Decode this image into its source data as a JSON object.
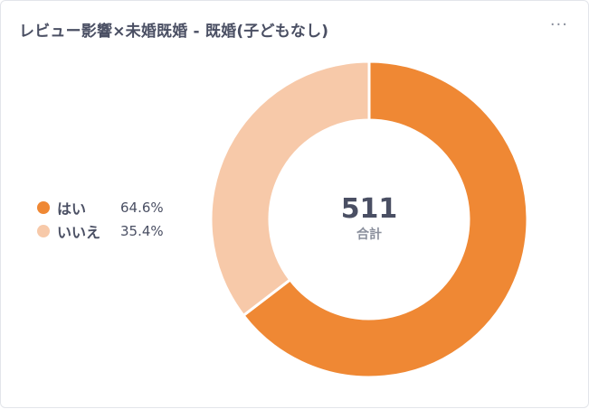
{
  "header": {
    "title": "レビュー影響×未婚既婚 - 既婚(子どもなし)",
    "menu_icon": "more-horizontal-icon"
  },
  "chart_data": {
    "type": "pie",
    "donut": true,
    "categories": [
      "はい",
      "いいえ"
    ],
    "values": [
      64.6,
      35.4
    ],
    "value_labels": [
      "64.6%",
      "35.4%"
    ],
    "colors": [
      "#ef8834",
      "#f7c9a9"
    ],
    "center_value": "511",
    "center_label": "合計",
    "legend_position": "left"
  }
}
